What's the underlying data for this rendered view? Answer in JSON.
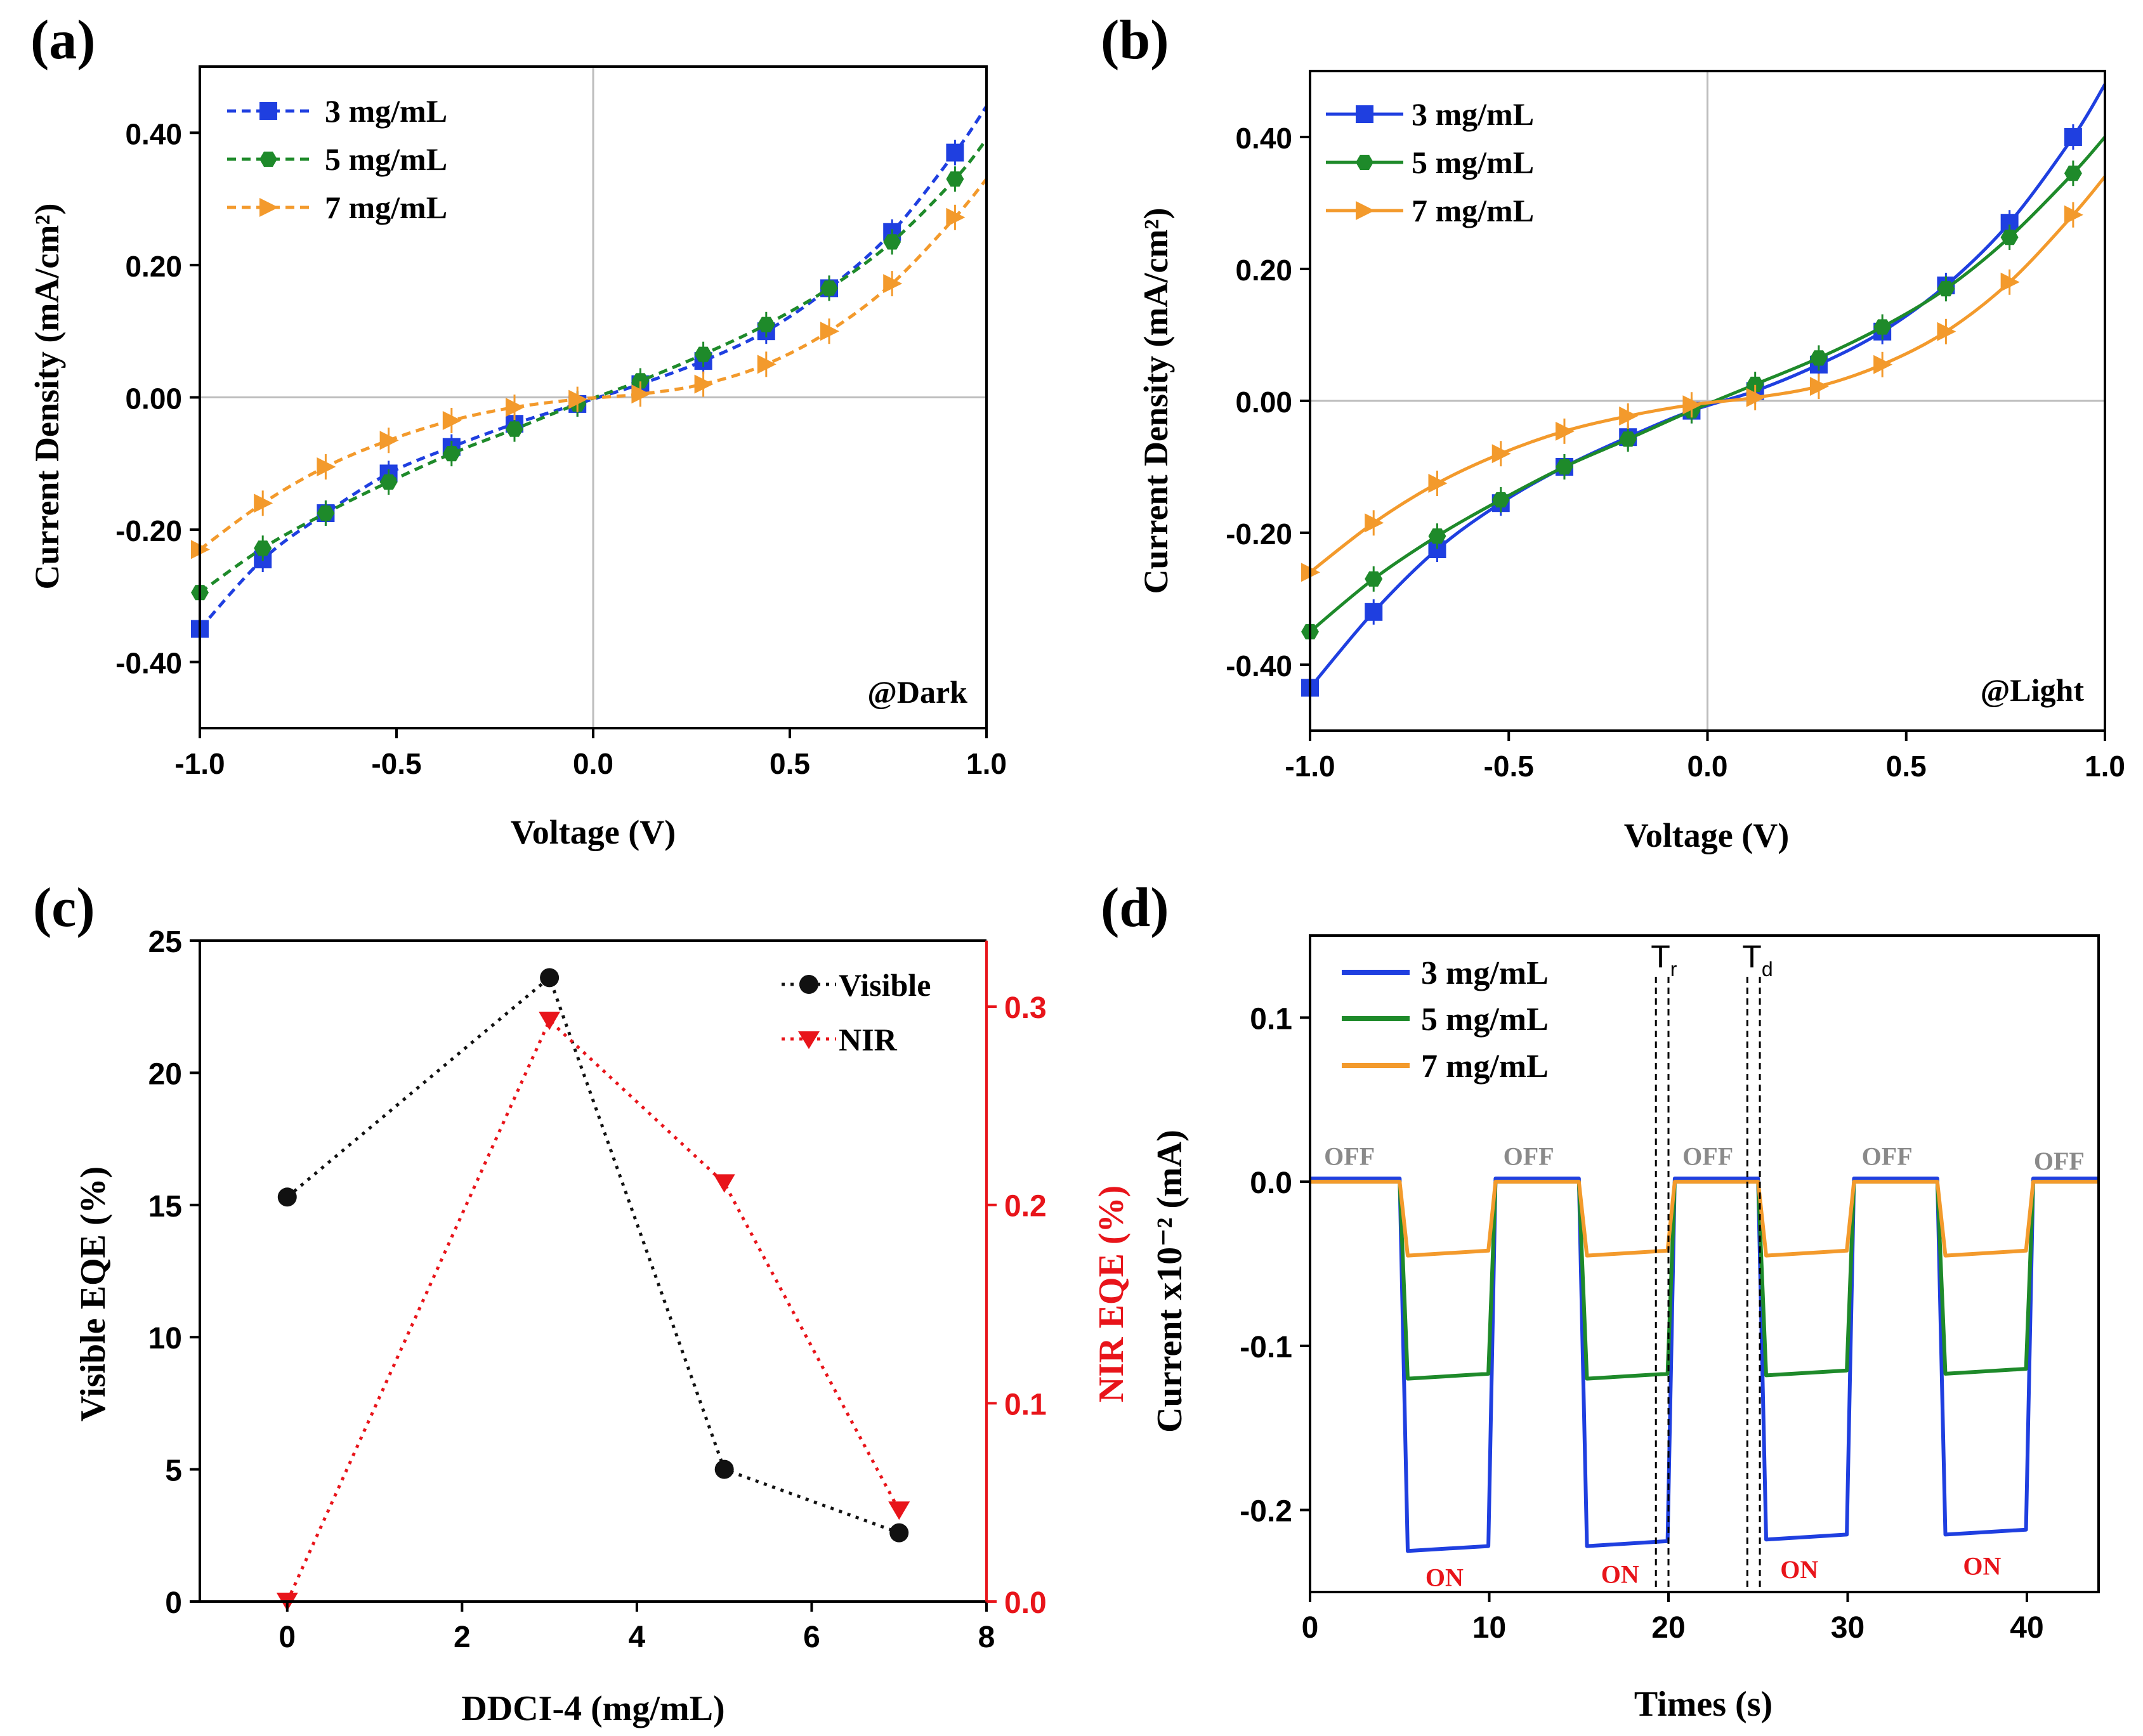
{
  "colors": {
    "blue": "#1f3fe0",
    "green": "#1e8a2a",
    "orange": "#f39a2c",
    "black": "#111111",
    "red": "#e8141a",
    "gray": "#8a8a8a"
  },
  "chart_data": [
    {
      "panel": "(a)",
      "type": "line",
      "xlabel": "Voltage (V)",
      "ylabel": "Current Density (mA/cm²)",
      "xlim": [
        -1.0,
        1.0
      ],
      "ylim": [
        -0.5,
        0.5
      ],
      "xticks": [
        -1.0,
        -0.5,
        0.0,
        0.5,
        1.0
      ],
      "xtick_labels": [
        "-1.0",
        "-0.5",
        "0.0",
        "0.5",
        "1.0"
      ],
      "yticks": [
        -0.4,
        -0.2,
        0.0,
        0.2,
        0.4
      ],
      "ytick_labels": [
        "-0.40",
        "-0.20",
        "0.00",
        "0.20",
        "0.40"
      ],
      "annotation": "@Dark",
      "line_style": "dashed",
      "x": [
        -1.0,
        -0.84,
        -0.68,
        -0.52,
        -0.36,
        -0.2,
        -0.04,
        0.12,
        0.28,
        0.44,
        0.6,
        0.76,
        0.92
      ],
      "series": [
        {
          "name": "3 mg/mL",
          "color": "blue",
          "marker": "square",
          "curve_end": 0.44,
          "values": [
            -0.35,
            -0.245,
            -0.175,
            -0.115,
            -0.075,
            -0.04,
            -0.01,
            0.02,
            0.055,
            0.1,
            0.165,
            0.25,
            0.37
          ]
        },
        {
          "name": "5 mg/mL",
          "color": "green",
          "marker": "hexagon",
          "curve_end": 0.39,
          "values": [
            -0.295,
            -0.228,
            -0.175,
            -0.128,
            -0.085,
            -0.048,
            -0.01,
            0.025,
            0.065,
            0.11,
            0.165,
            0.235,
            0.33
          ]
        },
        {
          "name": "7 mg/mL",
          "color": "orange",
          "marker": "triangle-right",
          "curve_end": 0.33,
          "values": [
            -0.23,
            -0.16,
            -0.105,
            -0.065,
            -0.035,
            -0.015,
            -0.003,
            0.005,
            0.02,
            0.05,
            0.1,
            0.172,
            0.272
          ]
        }
      ]
    },
    {
      "panel": "(b)",
      "type": "line",
      "xlabel": "Voltage (V)",
      "ylabel": "Current Density (mA/cm²)",
      "xlim": [
        -1.0,
        1.0
      ],
      "ylim": [
        -0.5,
        0.5
      ],
      "xticks": [
        -1.0,
        -0.5,
        0.0,
        0.5,
        1.0
      ],
      "xtick_labels": [
        "-1.0",
        "-0.5",
        "0.0",
        "0.5",
        "1.0"
      ],
      "yticks": [
        -0.4,
        -0.2,
        0.0,
        0.2,
        0.4
      ],
      "ytick_labels": [
        "-0.40",
        "-0.20",
        "0.00",
        "0.20",
        "0.40"
      ],
      "annotation": "@Light",
      "line_style": "solid",
      "x": [
        -1.0,
        -0.84,
        -0.68,
        -0.52,
        -0.36,
        -0.2,
        -0.04,
        0.12,
        0.28,
        0.44,
        0.6,
        0.76,
        0.92
      ],
      "series": [
        {
          "name": "3 mg/mL",
          "color": "blue",
          "marker": "square",
          "curve_end": 0.48,
          "values": [
            -0.435,
            -0.32,
            -0.225,
            -0.155,
            -0.1,
            -0.055,
            -0.015,
            0.015,
            0.055,
            0.105,
            0.175,
            0.27,
            0.4
          ]
        },
        {
          "name": "5 mg/mL",
          "color": "green",
          "marker": "hexagon",
          "curve_end": 0.4,
          "values": [
            -0.35,
            -0.27,
            -0.205,
            -0.15,
            -0.1,
            -0.058,
            -0.015,
            0.025,
            0.065,
            0.112,
            0.17,
            0.248,
            0.345
          ]
        },
        {
          "name": "7 mg/mL",
          "color": "orange",
          "marker": "triangle-right",
          "curve_end": 0.34,
          "values": [
            -0.26,
            -0.185,
            -0.125,
            -0.08,
            -0.046,
            -0.023,
            -0.006,
            0.005,
            0.022,
            0.055,
            0.105,
            0.18,
            0.282
          ]
        }
      ]
    },
    {
      "panel": "(c)",
      "type": "scatter",
      "xlabel": "DDCI-4 (mg/mL)",
      "ylabel": "Visible EQE (%)",
      "y2label": "NIR EQE (%)",
      "xlim": [
        -1.0,
        8.0
      ],
      "ylim": [
        0,
        25
      ],
      "y2lim": [
        0.0,
        0.3333
      ],
      "xticks": [
        0,
        2,
        4,
        6,
        8
      ],
      "xtick_labels": [
        "0",
        "2",
        "4",
        "6",
        "8"
      ],
      "yticks": [
        0,
        5,
        10,
        15,
        20,
        25
      ],
      "ytick_labels": [
        "0",
        "5",
        "10",
        "15",
        "20",
        "25"
      ],
      "y2ticks": [
        0.0,
        0.1,
        0.2,
        0.3
      ],
      "y2tick_labels": [
        "0.0",
        "0.1",
        "0.2",
        "0.3"
      ],
      "x": [
        0,
        3,
        5,
        7
      ],
      "series": [
        {
          "name": "Visible",
          "color": "black",
          "marker": "circle",
          "axis": "left",
          "values": [
            15.3,
            23.6,
            5.0,
            2.6
          ]
        },
        {
          "name": "NIR",
          "color": "red",
          "marker": "triangle-down",
          "axis": "right",
          "values": [
            0.0,
            0.293,
            0.211,
            0.046
          ]
        }
      ]
    },
    {
      "panel": "(d)",
      "type": "line",
      "xlabel": "Times (s)",
      "ylabel": "Current x10⁻² (mA)",
      "xlim": [
        0,
        44
      ],
      "ylim": [
        -0.25,
        0.15
      ],
      "xticks": [
        0,
        10,
        20,
        30,
        40
      ],
      "xtick_labels": [
        "0",
        "10",
        "20",
        "30",
        "40"
      ],
      "yticks": [
        -0.2,
        -0.1,
        0.0,
        0.1
      ],
      "ytick_labels": [
        "-0.2",
        "-0.1",
        "0.0",
        "0.1"
      ],
      "on_intervals": [
        [
          5,
          10
        ],
        [
          15,
          20
        ],
        [
          25,
          30
        ],
        [
          35,
          40
        ]
      ],
      "series": [
        {
          "name": "3 mg/mL",
          "color": "blue",
          "on_values": [
            -0.225,
            -0.222,
            -0.218,
            -0.215
          ],
          "off_value": 0.002
        },
        {
          "name": "5 mg/mL",
          "color": "green",
          "on_values": [
            -0.12,
            -0.12,
            -0.118,
            -0.117
          ],
          "off_value": 0.0
        },
        {
          "name": "7 mg/mL",
          "color": "orange",
          "on_values": [
            -0.045,
            -0.045,
            -0.045,
            -0.045
          ],
          "off_value": 0.0
        }
      ],
      "off_labels": [
        {
          "text": "OFF",
          "x": 2.2,
          "y": 0.008
        },
        {
          "text": "OFF",
          "x": 12.2,
          "y": 0.008
        },
        {
          "text": "OFF",
          "x": 22.2,
          "y": 0.008
        },
        {
          "text": "OFF",
          "x": 32.2,
          "y": 0.008
        },
        {
          "text": "OFF",
          "x": 41.8,
          "y": 0.005
        }
      ],
      "on_labels": [
        {
          "text": "ON",
          "x": 7.5,
          "y": -0.241
        },
        {
          "text": "ON",
          "x": 17.3,
          "y": -0.239
        },
        {
          "text": "ON",
          "x": 27.3,
          "y": -0.236
        },
        {
          "text": "ON",
          "x": 37.5,
          "y": -0.234
        }
      ],
      "markers": [
        {
          "label": "T",
          "subscript": "r",
          "lines": [
            19.3,
            20.0
          ]
        },
        {
          "label": "T",
          "subscript": "d",
          "lines": [
            24.4,
            25.1
          ]
        }
      ]
    }
  ]
}
